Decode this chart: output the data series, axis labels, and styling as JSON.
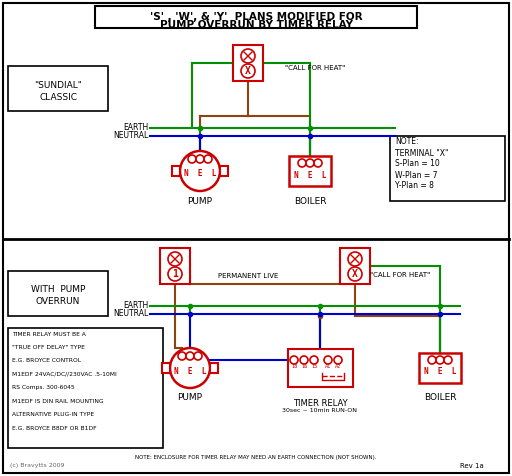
{
  "title_lines": [
    "'S' , 'W', & 'Y'  PLANS MODIFIED FOR",
    "PUMP OVERRUN BY TIMER RELAY"
  ],
  "bg_color": "#ffffff",
  "red": "#cc0000",
  "green": "#009000",
  "blue": "#0000cc",
  "brown": "#8B4513",
  "gray": "#666666",
  "note_text": [
    "NOTE:",
    "TERMINAL \"X\"",
    "S-Plan = 10",
    "W-Plan = 7",
    "Y-Plan = 8"
  ],
  "timer_note": [
    "TIMER RELAY MUST BE A",
    "\"TRUE OFF DELAY\" TYPE",
    "E.G. BROYCE CONTROL",
    "M1EDF 24VAC/DC//230VAC .5-10MI",
    "RS Comps. 300-6045",
    "M1EDF IS DIN RAIL MOUNTING",
    "ALTERNATIVE PLUG-IN TYPE",
    "E.G. BROYCE B8DF OR B1DF"
  ],
  "bottom_note": "NOTE: ENCLOSURE FOR TIMER RELAY MAY NEED AN EARTH CONNECTION (NOT SHOWN).",
  "rev_text": "Rev 1a",
  "copyright": "(c) Bravytts 2009"
}
